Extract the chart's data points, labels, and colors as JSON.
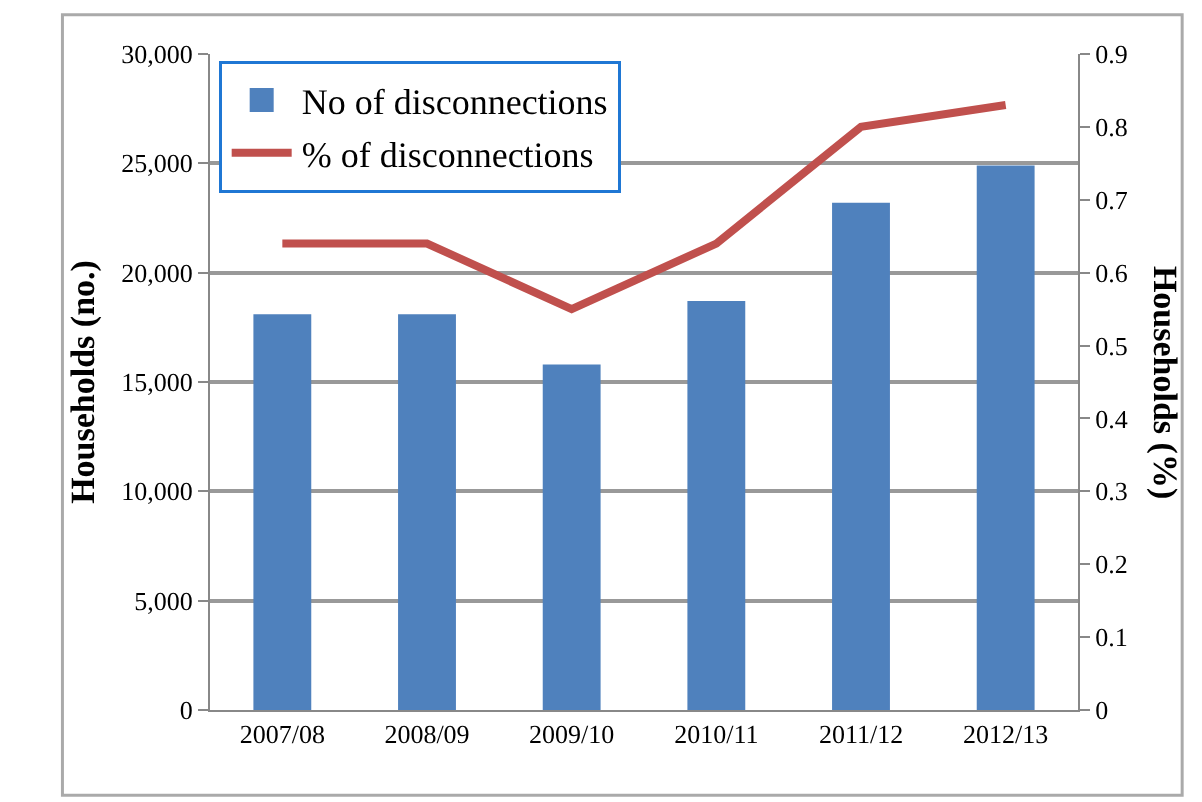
{
  "chart_data": {
    "type": "bar",
    "categories": [
      "2007/08",
      "2008/09",
      "2009/10",
      "2010/11",
      "2011/12",
      "2012/13"
    ],
    "series": [
      {
        "name": "No of disconnections",
        "color": "#4f81bd",
        "values": [
          18100,
          18100,
          15800,
          18700,
          23200,
          24900
        ]
      },
      {
        "name": "% of disconnections",
        "type": "line",
        "axis": "y2",
        "color": "#c0504d",
        "values": [
          0.64,
          0.64,
          0.55,
          0.64,
          0.8,
          0.83
        ]
      }
    ],
    "ylabel": "Households (no.)",
    "y2label": "Households (%)",
    "ylim": [
      0,
      30000
    ],
    "yticks": [
      {
        "value": 0,
        "label": "0"
      },
      {
        "value": 5000,
        "label": "5,000"
      },
      {
        "value": 10000,
        "label": "10,000"
      },
      {
        "value": 15000,
        "label": "15,000"
      },
      {
        "value": 20000,
        "label": "20,000"
      },
      {
        "value": 25000,
        "label": "25,000"
      },
      {
        "value": 30000,
        "label": "30,000"
      }
    ],
    "y2lim": [
      0,
      0.9
    ],
    "y2ticks": [
      0,
      0.1,
      0.2,
      0.3,
      0.4,
      0.5,
      0.6,
      0.7,
      0.8,
      0.9
    ],
    "grid": "y",
    "legend": "top left",
    "marker": "none",
    "line_style": "solid"
  }
}
